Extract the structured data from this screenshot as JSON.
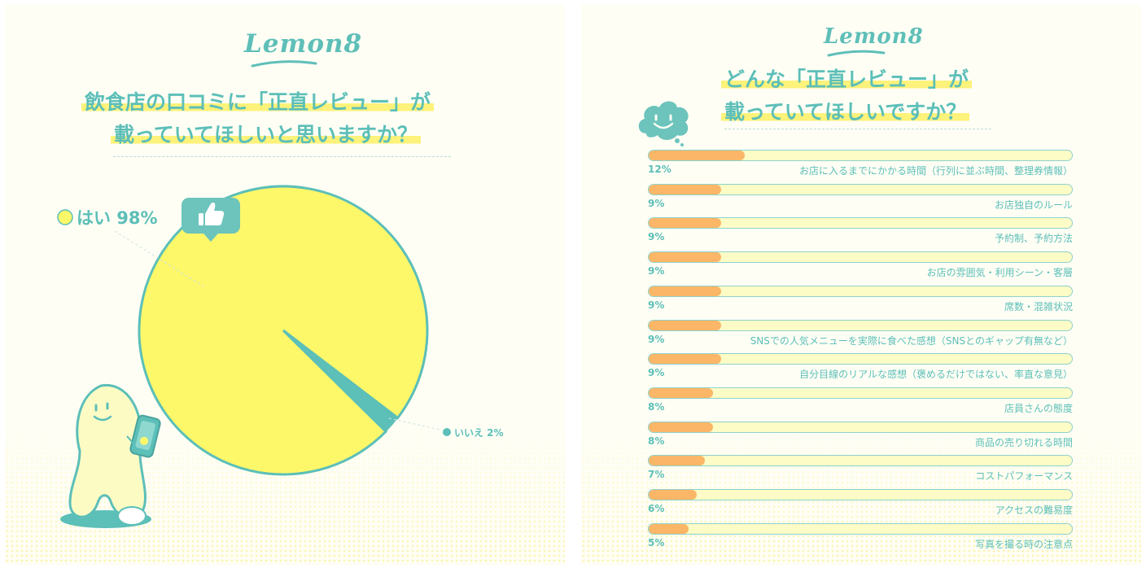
{
  "left": {
    "logo": "Lemon8",
    "title_line1": "飲食店の口コミに「正直レビュー」が",
    "title_line2": "載っていてほしいと思いますか？"
  },
  "right": {
    "logo": "Lemon8",
    "title_line1": "どんな「正直レビュー」が",
    "title_line2": "載っていてほしいですか？"
  },
  "icons": {
    "thumb": "thumbs-up-icon",
    "cloud": "smiling-cloud-icon",
    "mascot": "lemon-mascot-with-phone"
  },
  "colors": {
    "teal": "#5cbfb8",
    "yellow": "#fdf76a",
    "orange": "#fbb667",
    "track": "#fdfbc6"
  },
  "chart_data": [
    {
      "type": "pie",
      "title": "飲食店の口コミに「正直レビュー」が載っていてほしいと思いますか？",
      "slices": [
        {
          "label": "はい 98%",
          "value": 98,
          "color": "#fdf76a"
        },
        {
          "label": "いいえ 2%",
          "value": 2,
          "color": "#5cbfb8"
        }
      ]
    },
    {
      "type": "bar",
      "title": "どんな「正直レビュー」が載っていてほしいですか？",
      "categories": [
        "お店に入るまでにかかる時間（行列に並ぶ時間、整理券情報）",
        "お店独自のルール",
        "予約制、予約方法",
        "お店の雰囲気・利用シーン・客層",
        "席数・混雑状況",
        "SNSでの人気メニューを実際に食べた感想（SNSとのギャップ有無など）",
        "自分目線のリアルな感想（褒めるだけではない、率直な意見）",
        "店員さんの態度",
        "商品の売り切れる時間",
        "コストパフォーマンス",
        "アクセスの難易度",
        "写真を撮る時の注意点"
      ],
      "value_labels": [
        "12%",
        "9%",
        "9%",
        "9%",
        "9%",
        "9%",
        "9%",
        "8%",
        "8%",
        "7%",
        "6%",
        "5%"
      ],
      "values": [
        12,
        9,
        9,
        9,
        9,
        9,
        9,
        8,
        8,
        7,
        6,
        5
      ],
      "xlim": [
        0,
        53
      ]
    }
  ]
}
